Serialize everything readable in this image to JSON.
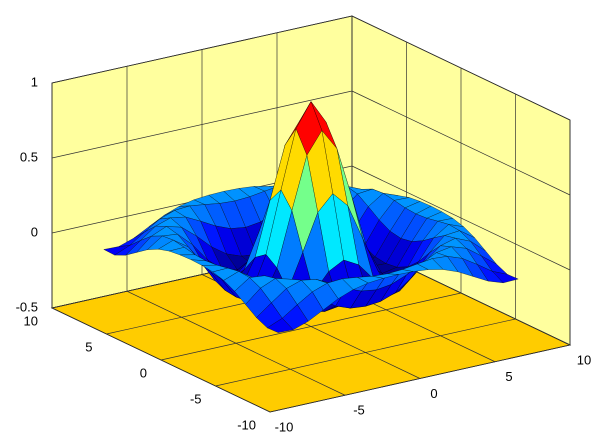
{
  "chart_data": {
    "type": "surface",
    "x": [
      -8,
      -7,
      -6,
      -5,
      -4,
      -3,
      -2,
      -1,
      0,
      1,
      2,
      3,
      4,
      5,
      6,
      7,
      8
    ],
    "y": [
      -8,
      -7,
      -6,
      -5,
      -4,
      -3,
      -2,
      -1,
      0,
      1,
      2,
      3,
      4,
      5,
      6,
      7,
      8
    ],
    "z": [
      [
        -0.085,
        -0.088,
        -0.054,
        -0.001,
        0.052,
        0.09,
        0.112,
        0.121,
        0.124,
        0.121,
        0.112,
        0.09,
        0.052,
        -0.001,
        -0.054,
        -0.088,
        -0.085
      ],
      [
        -0.088,
        -0.046,
        0.022,
        0.085,
        0.121,
        0.128,
        0.115,
        0.1,
        0.094,
        0.1,
        0.115,
        0.128,
        0.121,
        0.085,
        0.022,
        -0.046,
        -0.088
      ],
      [
        -0.054,
        0.022,
        0.095,
        0.128,
        0.111,
        0.061,
        0.007,
        -0.033,
        -0.047,
        -0.033,
        0.007,
        0.061,
        0.111,
        0.128,
        0.095,
        0.022,
        -0.054
      ],
      [
        -0.001,
        0.085,
        0.128,
        0.1,
        0.019,
        -0.075,
        -0.145,
        -0.182,
        -0.192,
        -0.182,
        -0.145,
        -0.075,
        0.019,
        0.1,
        0.128,
        0.085,
        -0.001
      ],
      [
        0.052,
        0.121,
        0.111,
        0.019,
        -0.104,
        -0.192,
        -0.217,
        -0.202,
        -0.189,
        -0.202,
        -0.217,
        -0.192,
        -0.104,
        0.019,
        0.111,
        0.121,
        0.052
      ],
      [
        0.09,
        0.128,
        0.061,
        -0.075,
        -0.192,
        -0.21,
        -0.124,
        -0.007,
        0.047,
        -0.007,
        -0.124,
        -0.21,
        -0.192,
        -0.075,
        0.061,
        0.128,
        0.09
      ],
      [
        0.112,
        0.115,
        0.007,
        -0.145,
        -0.217,
        -0.124,
        0.109,
        0.352,
        0.455,
        0.352,
        0.109,
        -0.124,
        -0.217,
        -0.145,
        0.007,
        0.115,
        0.112
      ],
      [
        0.121,
        0.1,
        -0.033,
        -0.182,
        -0.202,
        -0.007,
        0.352,
        0.698,
        0.841,
        0.698,
        0.352,
        -0.007,
        -0.202,
        -0.182,
        -0.033,
        0.1,
        0.121
      ],
      [
        0.124,
        0.094,
        -0.047,
        -0.192,
        -0.189,
        0.047,
        0.455,
        0.841,
        1,
        0.841,
        0.455,
        0.047,
        -0.189,
        -0.192,
        -0.047,
        0.094,
        0.124
      ],
      [
        0.121,
        0.1,
        -0.033,
        -0.182,
        -0.202,
        -0.007,
        0.352,
        0.698,
        0.841,
        0.698,
        0.352,
        -0.007,
        -0.202,
        -0.182,
        -0.033,
        0.1,
        0.121
      ],
      [
        0.112,
        0.115,
        0.007,
        -0.145,
        -0.217,
        -0.124,
        0.109,
        0.352,
        0.455,
        0.352,
        0.109,
        -0.124,
        -0.217,
        -0.145,
        0.007,
        0.115,
        0.112
      ],
      [
        0.09,
        0.128,
        0.061,
        -0.075,
        -0.192,
        -0.21,
        -0.124,
        -0.007,
        0.047,
        -0.007,
        -0.124,
        -0.21,
        -0.192,
        -0.075,
        0.061,
        0.128,
        0.09
      ],
      [
        0.052,
        0.121,
        0.111,
        0.019,
        -0.104,
        -0.192,
        -0.217,
        -0.202,
        -0.189,
        -0.202,
        -0.217,
        -0.192,
        -0.104,
        0.019,
        0.111,
        0.121,
        0.052
      ],
      [
        -0.001,
        0.085,
        0.128,
        0.1,
        0.019,
        -0.075,
        -0.145,
        -0.182,
        -0.192,
        -0.182,
        -0.145,
        -0.075,
        0.019,
        0.1,
        0.128,
        0.085,
        -0.001
      ],
      [
        -0.054,
        0.022,
        0.095,
        0.128,
        0.111,
        0.061,
        0.007,
        -0.033,
        -0.047,
        -0.033,
        0.007,
        0.061,
        0.111,
        0.128,
        0.095,
        0.022,
        -0.054
      ],
      [
        -0.088,
        -0.046,
        0.022,
        0.085,
        0.121,
        0.128,
        0.115,
        0.1,
        0.094,
        0.1,
        0.115,
        0.128,
        0.121,
        0.085,
        0.022,
        -0.046,
        -0.088
      ],
      [
        -0.085,
        -0.088,
        -0.054,
        -0.001,
        0.052,
        0.09,
        0.112,
        0.121,
        0.124,
        0.121,
        0.112,
        0.09,
        0.052,
        -0.001,
        -0.054,
        -0.088,
        -0.085
      ]
    ],
    "xlim": [
      -10,
      10
    ],
    "xticks": [
      -10,
      -5,
      0,
      5,
      10
    ],
    "ylim": [
      -10,
      10
    ],
    "yticks": [
      -10,
      -5,
      0,
      5,
      10
    ],
    "zlim": [
      -0.5,
      1
    ],
    "zticks": [
      -0.5,
      0,
      0.5,
      1
    ],
    "grid": true,
    "colormap": "jet",
    "wall_color": "#ffff9e",
    "floor_color": "#ffcc00"
  }
}
